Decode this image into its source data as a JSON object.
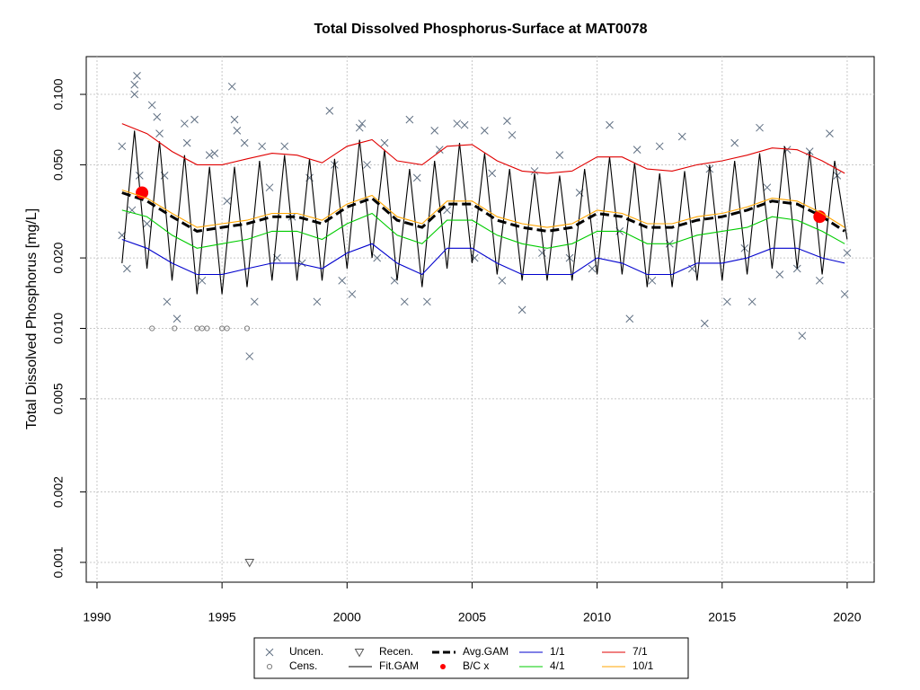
{
  "chart_data": {
    "type": "line",
    "title": "Total Dissolved Phosphorus-Surface at MAT0078",
    "ylabel": "Total Dissolved Phosphorus [mg/L]",
    "ylog": true,
    "grid": true,
    "legend": "bottom",
    "xlim": [
      1989.57,
      2021.08
    ],
    "xticks": [
      1990,
      1995,
      2000,
      2005,
      2010,
      2015,
      2020
    ],
    "ylim": [
      0.000823,
      0.145
    ],
    "yticks": [
      0.001,
      0.002,
      0.005,
      {
        "value": 0.01,
        "label": "0.010"
      },
      {
        "value": 0.02,
        "label": "0.020"
      },
      {
        "value": 0.05,
        "label": "0.050"
      },
      {
        "value": 0.1,
        "label": "0.100"
      }
    ],
    "series": [
      {
        "name": "Uncen.",
        "style": "x",
        "color": "#5f6f82",
        "x": [
          1991.0,
          1991.0,
          1991.2,
          1991.4,
          1991.5,
          1991.6,
          1991.5,
          1991.7,
          1992.0,
          1992.2,
          1992.4,
          1992.5,
          1992.7,
          1992.8,
          1993.2,
          1993.5,
          1993.6,
          1993.9,
          1994.2,
          1994.5,
          1994.7,
          1995.2,
          1995.4,
          1995.5,
          1995.6,
          1995.9,
          1996.1,
          1996.3,
          1996.6,
          1996.9,
          1997.2,
          1997.5,
          1997.8,
          1998.2,
          1998.5,
          1998.8,
          1999.3,
          1999.5,
          1999.8,
          2000.2,
          2000.5,
          2000.6,
          2000.8,
          2001.2,
          2001.5,
          2001.9,
          2002.3,
          2002.5,
          2002.8,
          2003.2,
          2003.5,
          2003.7,
          2004.0,
          2004.4,
          2004.7,
          2005.1,
          2005.5,
          2005.8,
          2006.2,
          2006.4,
          2006.6,
          2007.0,
          2007.5,
          2007.8,
          2008.5,
          2008.9,
          2009.3,
          2009.8,
          2010.5,
          2010.9,
          2011.3,
          2011.6,
          2012.2,
          2012.5,
          2012.9,
          2013.4,
          2013.8,
          2014.3,
          2014.5,
          2015.2,
          2015.5,
          2015.9,
          2016.2,
          2016.5,
          2016.8,
          2017.3,
          2017.6,
          2018.0,
          2018.2,
          2018.5,
          2018.9,
          2019.3,
          2019.6,
          2019.9,
          2020.0
        ],
        "values": [
          0.06,
          0.025,
          0.018,
          0.032,
          0.11,
          0.12,
          0.1,
          0.045,
          0.028,
          0.09,
          0.08,
          0.068,
          0.045,
          0.013,
          0.011,
          0.075,
          0.062,
          0.078,
          0.016,
          0.055,
          0.056,
          0.035,
          0.108,
          0.078,
          0.07,
          0.062,
          0.0076,
          0.013,
          0.06,
          0.04,
          0.02,
          0.06,
          0.03,
          0.019,
          0.044,
          0.013,
          0.085,
          0.05,
          0.016,
          0.014,
          0.072,
          0.075,
          0.05,
          0.02,
          0.062,
          0.016,
          0.013,
          0.078,
          0.044,
          0.013,
          0.07,
          0.058,
          0.032,
          0.075,
          0.074,
          0.02,
          0.07,
          0.046,
          0.016,
          0.077,
          0.067,
          0.012,
          0.047,
          0.021,
          0.055,
          0.02,
          0.038,
          0.018,
          0.074,
          0.026,
          0.011,
          0.058,
          0.016,
          0.06,
          0.023,
          0.066,
          0.018,
          0.0105,
          0.048,
          0.013,
          0.062,
          0.022,
          0.013,
          0.072,
          0.04,
          0.017,
          0.058,
          0.018,
          0.0093,
          0.057,
          0.016,
          0.068,
          0.045,
          0.014,
          0.021
        ]
      },
      {
        "name": "Cens.",
        "style": "circle",
        "color": "#808080",
        "x": [
          1992.2,
          1993.1,
          1994.0,
          1994.2,
          1994.4,
          1995.0,
          1995.2,
          1996.0
        ],
        "values": [
          0.01,
          0.01,
          0.01,
          0.01,
          0.01,
          0.01,
          0.01,
          0.01
        ]
      },
      {
        "name": "Recen.",
        "style": "triangle",
        "color": "#555555",
        "x": [
          1996.1
        ],
        "values": [
          0.001
        ]
      },
      {
        "name": "Fit.GAM",
        "style": "line",
        "color": "#000000",
        "x": [
          1991.0,
          1991.5,
          1992.0,
          1992.5,
          1993.0,
          1993.5,
          1994.0,
          1994.5,
          1995.0,
          1995.5,
          1996.0,
          1996.5,
          1997.0,
          1997.5,
          1998.0,
          1998.5,
          1999.0,
          1999.5,
          2000.0,
          2000.5,
          2001.0,
          2001.5,
          2002.0,
          2002.5,
          2003.0,
          2003.5,
          2004.0,
          2004.5,
          2005.0,
          2005.5,
          2006.0,
          2006.5,
          2007.0,
          2007.5,
          2008.0,
          2008.5,
          2009.0,
          2009.5,
          2010.0,
          2010.5,
          2011.0,
          2011.5,
          2012.0,
          2012.5,
          2013.0,
          2013.5,
          2014.0,
          2014.5,
          2015.0,
          2015.5,
          2016.0,
          2016.5,
          2017.0,
          2017.5,
          2018.0,
          2018.5,
          2019.0,
          2019.5,
          2020.0
        ],
        "values": [
          0.019,
          0.07,
          0.018,
          0.063,
          0.016,
          0.055,
          0.014,
          0.049,
          0.014,
          0.049,
          0.015,
          0.052,
          0.016,
          0.055,
          0.016,
          0.053,
          0.016,
          0.053,
          0.018,
          0.064,
          0.02,
          0.058,
          0.016,
          0.048,
          0.015,
          0.052,
          0.018,
          0.062,
          0.019,
          0.056,
          0.017,
          0.048,
          0.016,
          0.046,
          0.016,
          0.045,
          0.016,
          0.048,
          0.017,
          0.054,
          0.017,
          0.051,
          0.015,
          0.046,
          0.015,
          0.047,
          0.016,
          0.05,
          0.016,
          0.052,
          0.017,
          0.056,
          0.018,
          0.06,
          0.018,
          0.057,
          0.017,
          0.052,
          0.024
        ]
      },
      {
        "name": "Avg.GAM",
        "style": "dashed",
        "color": "#000000",
        "x": [
          1991,
          1992,
          1993,
          1994,
          1995,
          1996,
          1997,
          1998,
          1999,
          2000,
          2001,
          2002,
          2003,
          2004,
          2005,
          2006,
          2007,
          2008,
          2009,
          2010,
          2011,
          2012,
          2013,
          2014,
          2015,
          2016,
          2017,
          2018,
          2019,
          2019.9
        ],
        "values": [
          0.038,
          0.035,
          0.03,
          0.026,
          0.027,
          0.028,
          0.03,
          0.03,
          0.028,
          0.033,
          0.036,
          0.029,
          0.027,
          0.034,
          0.034,
          0.029,
          0.027,
          0.026,
          0.027,
          0.031,
          0.03,
          0.027,
          0.027,
          0.029,
          0.03,
          0.032,
          0.035,
          0.034,
          0.03,
          0.026
        ]
      },
      {
        "name": "B/C x",
        "style": "point",
        "color": "#ff0000",
        "x": [
          1991.8,
          2018.9
        ],
        "values": [
          0.038,
          0.03
        ]
      },
      {
        "name": "1/1",
        "style": "line",
        "color": "#0000cd",
        "x": [
          1991,
          1992,
          1993,
          1994,
          1995,
          1996,
          1997,
          1998,
          1999,
          2000,
          2001,
          2002,
          2003,
          2004,
          2005,
          2006,
          2007,
          2008,
          2009,
          2010,
          2011,
          2012,
          2013,
          2014,
          2015,
          2016,
          2017,
          2018,
          2019,
          2019.9
        ],
        "values": [
          0.024,
          0.022,
          0.019,
          0.017,
          0.017,
          0.018,
          0.019,
          0.019,
          0.018,
          0.021,
          0.023,
          0.019,
          0.017,
          0.022,
          0.022,
          0.019,
          0.017,
          0.017,
          0.017,
          0.02,
          0.019,
          0.017,
          0.017,
          0.019,
          0.019,
          0.02,
          0.022,
          0.022,
          0.02,
          0.019
        ]
      },
      {
        "name": "4/1",
        "style": "line",
        "color": "#00cc00",
        "x": [
          1991,
          1992,
          1993,
          1994,
          1995,
          1996,
          1997,
          1998,
          1999,
          2000,
          2001,
          2002,
          2003,
          2004,
          2005,
          2006,
          2007,
          2008,
          2009,
          2010,
          2011,
          2012,
          2013,
          2014,
          2015,
          2016,
          2017,
          2018,
          2019,
          2019.9
        ],
        "values": [
          0.032,
          0.03,
          0.025,
          0.022,
          0.023,
          0.024,
          0.026,
          0.026,
          0.024,
          0.028,
          0.031,
          0.025,
          0.023,
          0.029,
          0.029,
          0.025,
          0.023,
          0.022,
          0.023,
          0.026,
          0.026,
          0.023,
          0.023,
          0.025,
          0.026,
          0.027,
          0.03,
          0.029,
          0.026,
          0.023
        ]
      },
      {
        "name": "7/1",
        "style": "line",
        "color": "#e00000",
        "x": [
          1991,
          1992,
          1993,
          1994,
          1995,
          1996,
          1997,
          1998,
          1999,
          2000,
          2001,
          2002,
          2003,
          2004,
          2005,
          2006,
          2007,
          2008,
          2009,
          2010,
          2011,
          2012,
          2013,
          2014,
          2015,
          2016,
          2017,
          2018,
          2019,
          2019.9
        ],
        "values": [
          0.075,
          0.068,
          0.057,
          0.05,
          0.05,
          0.053,
          0.056,
          0.055,
          0.051,
          0.06,
          0.064,
          0.052,
          0.05,
          0.06,
          0.061,
          0.052,
          0.047,
          0.046,
          0.047,
          0.054,
          0.054,
          0.048,
          0.047,
          0.05,
          0.052,
          0.055,
          0.059,
          0.058,
          0.052,
          0.046
        ]
      },
      {
        "name": "10/1",
        "style": "line",
        "color": "#ffa500",
        "x": [
          1991,
          1992,
          1993,
          1994,
          1995,
          1996,
          1997,
          1998,
          1999,
          2000,
          2001,
          2002,
          2003,
          2004,
          2005,
          2006,
          2007,
          2008,
          2009,
          2010,
          2011,
          2012,
          2013,
          2014,
          2015,
          2016,
          2017,
          2018,
          2019,
          2019.9
        ],
        "values": [
          0.039,
          0.036,
          0.031,
          0.027,
          0.028,
          0.029,
          0.031,
          0.031,
          0.029,
          0.034,
          0.037,
          0.03,
          0.028,
          0.035,
          0.035,
          0.03,
          0.028,
          0.027,
          0.028,
          0.032,
          0.031,
          0.028,
          0.028,
          0.03,
          0.031,
          0.033,
          0.036,
          0.035,
          0.031,
          0.027
        ]
      }
    ]
  }
}
